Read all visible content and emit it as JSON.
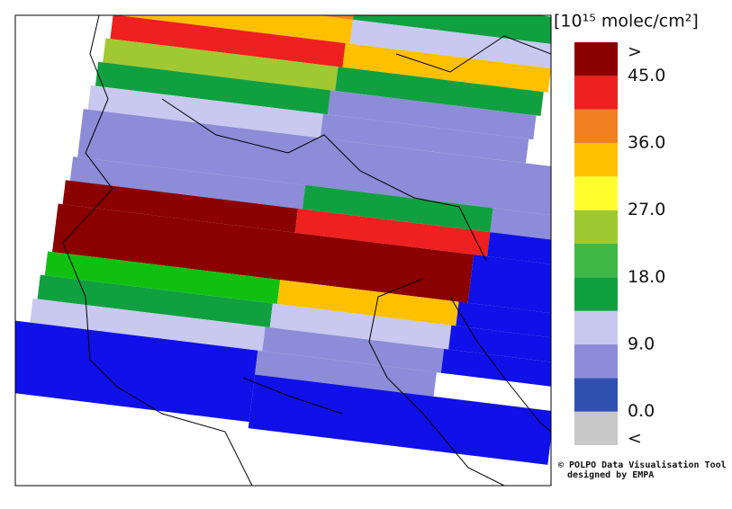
{
  "legend": {
    "title": "[10¹⁵ molec/cm²]",
    "over_label": ">",
    "under_label": "<",
    "ticks": [
      {
        "value": 45,
        "label": "45.0"
      },
      {
        "value": 36,
        "label": "36.0"
      },
      {
        "value": 27,
        "label": "27.0"
      },
      {
        "value": 18,
        "label": "18.0"
      },
      {
        "value": 9,
        "label": "9.0"
      },
      {
        "value": 0,
        "label": "0.0"
      }
    ],
    "colors": [
      "#c8c8c8",
      "#3050b0",
      "#8c8cd8",
      "#c8c8f0",
      "#10a040",
      "#40b848",
      "#a0c830",
      "#ffff30",
      "#ffc000",
      "#f08020",
      "#ee2020",
      "#8b0000"
    ],
    "step": 4.5
  },
  "credit": {
    "line1": "© POLPO Data Visualisation Tool",
    "line2": "designed by EMPA"
  }
}
